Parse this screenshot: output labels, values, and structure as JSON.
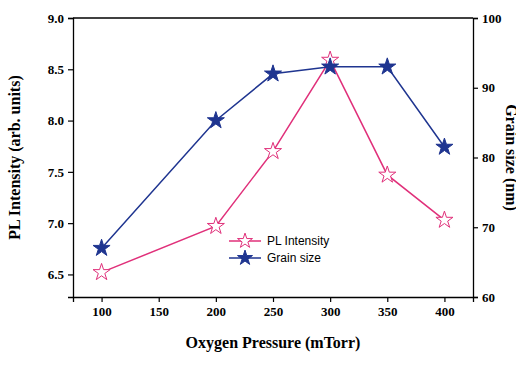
{
  "chart_data": {
    "type": "line",
    "x_label": "Oxygen Pressure (mTorr)",
    "y_label": "PL Intensity (arb. units)",
    "y2_label": "Grain size (nm)",
    "x": [
      100,
      200,
      250,
      300,
      350,
      400
    ],
    "series": [
      {
        "name": "PL Intensity",
        "color": "#e0307a",
        "marker": "star-open",
        "values": [
          6.52,
          6.97,
          7.7,
          8.59,
          7.47,
          7.03
        ]
      },
      {
        "name": "Grain size",
        "color": "#1f3590",
        "marker": "star",
        "axis": "y2",
        "values": [
          67,
          85.3,
          92,
          93,
          93,
          81.5
        ]
      }
    ],
    "xlim": [
      75,
      425
    ],
    "xticks": [
      100,
      150,
      200,
      250,
      300,
      350,
      400
    ],
    "ylim": [
      6.28,
      9.0
    ],
    "yticks": [
      6.5,
      {
        "value": 7,
        "label": "7.0"
      },
      7.5,
      {
        "value": 8,
        "label": "8.0"
      },
      8.5,
      {
        "value": 9,
        "label": "9.0"
      }
    ],
    "y2lim": [
      60,
      100
    ],
    "y2ticks": [
      60,
      70,
      80,
      90,
      100
    ],
    "grid": false,
    "legend": "lower center"
  }
}
